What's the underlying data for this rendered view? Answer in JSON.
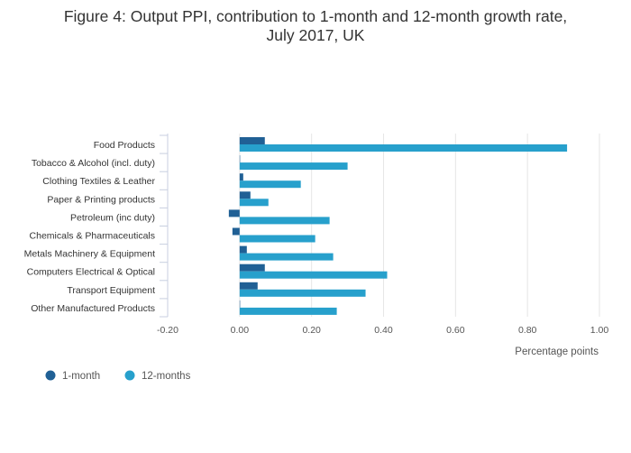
{
  "chart_data": {
    "type": "bar",
    "orientation": "horizontal",
    "title_line1": "Figure 4: Output PPI, contribution to 1-month and 12-month growth rate,",
    "title_line2": "July 2017, UK",
    "xlabel": "Percentage points",
    "xlim": [
      -0.2,
      1.0
    ],
    "xticks": [
      -0.2,
      0.0,
      0.2,
      0.4,
      0.6,
      0.8,
      1.0
    ],
    "xtick_labels": [
      "-0.20",
      "0.00",
      "0.20",
      "0.40",
      "0.60",
      "0.80",
      "1.00"
    ],
    "grid": true,
    "legend_position": "bottom-left",
    "categories": [
      "Food Products",
      "Tobacco & Alcohol (incl. duty)",
      "Clothing Textiles & Leather",
      "Paper & Printing products",
      "Petroleum (inc duty)",
      "Chemicals & Pharmaceuticals",
      "Metals Machinery & Equipment",
      "Computers Electrical & Optical",
      "Transport Equipment",
      "Other Manufactured Products"
    ],
    "series": [
      {
        "name": "1-month",
        "color": "#206095",
        "values": [
          0.07,
          0.0,
          0.01,
          0.03,
          -0.03,
          -0.02,
          0.02,
          0.07,
          0.05,
          0.0
        ]
      },
      {
        "name": "12-months",
        "color": "#27a0cc",
        "values": [
          0.91,
          0.3,
          0.17,
          0.08,
          0.25,
          0.21,
          0.26,
          0.41,
          0.35,
          0.27
        ]
      }
    ]
  }
}
